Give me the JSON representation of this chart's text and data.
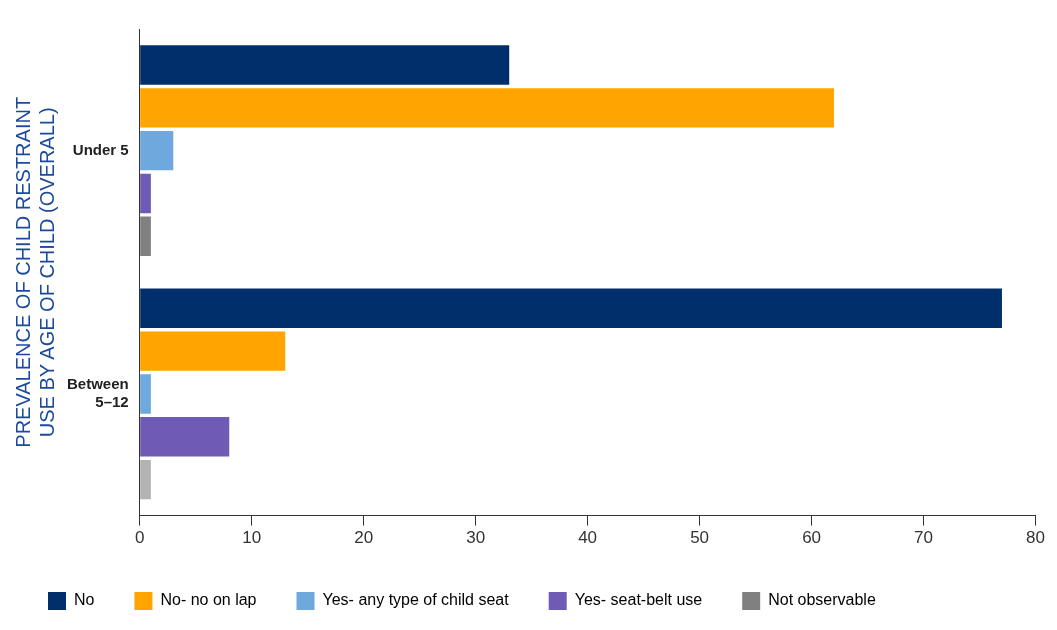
{
  "chart_data": {
    "type": "bar",
    "orientation": "horizontal",
    "ylabel": "PREVALENCE OF CHILD RESTRAINT USE BY AGE OF CHILD (OVERALL)",
    "categories": [
      "Under 5",
      "Between 5–12"
    ],
    "series": [
      {
        "name": "No",
        "color": "#002f6c",
        "values": [
          33,
          77
        ]
      },
      {
        "name": "No- no on lap",
        "color": "#ffa400",
        "values": [
          62,
          13
        ]
      },
      {
        "name": "Yes- any type of child seat",
        "color": "#6fa8dc",
        "values": [
          3,
          1
        ]
      },
      {
        "name": "Yes- seat-belt use",
        "color": "#6f5bb5",
        "values": [
          1,
          8
        ]
      },
      {
        "name": "Not observable",
        "color": "#808080",
        "colors": [
          "#808080",
          "#b3b3b3"
        ],
        "values": [
          1,
          1
        ]
      }
    ],
    "xlim": [
      0,
      80
    ],
    "xticks": [
      0,
      10,
      20,
      30,
      40,
      50,
      60,
      70,
      80
    ],
    "grid": false,
    "legend": "bottom"
  }
}
